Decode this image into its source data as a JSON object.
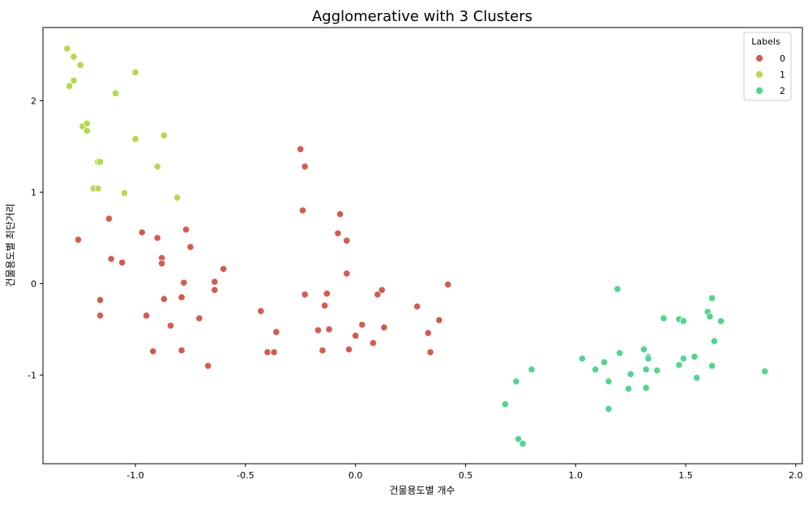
{
  "chart_data": {
    "type": "scatter",
    "title": "Agglomerative with 3 Clusters",
    "xlabel": "건물용도별 개수",
    "ylabel": "건물용도별 최단거리",
    "xlim": [
      -1.42,
      2.03
    ],
    "ylim": [
      -1.97,
      2.8
    ],
    "xticks": [
      -1.0,
      -0.5,
      0.0,
      0.5,
      1.0,
      1.5,
      2.0
    ],
    "xtick_labels": [
      "-1.0",
      "-0.5",
      "0.0",
      "0.5",
      "1.0",
      "1.5",
      "2.0"
    ],
    "yticks": [
      -1,
      0,
      1,
      2
    ],
    "ytick_labels": [
      "-1",
      "0",
      "1",
      "2"
    ],
    "grid": false,
    "legend": {
      "title": "Labels",
      "placement": "top-right",
      "entries": [
        "0",
        "1",
        "2"
      ]
    },
    "series": [
      {
        "name": "0",
        "color": "#d65a4e",
        "points": [
          [
            -1.26,
            0.48
          ],
          [
            -1.12,
            0.71
          ],
          [
            -1.11,
            0.27
          ],
          [
            -1.06,
            0.23
          ],
          [
            -1.16,
            -0.18
          ],
          [
            -1.16,
            -0.35
          ],
          [
            -0.97,
            0.56
          ],
          [
            -0.9,
            0.5
          ],
          [
            -0.88,
            0.28
          ],
          [
            -0.88,
            0.22
          ],
          [
            -0.77,
            0.59
          ],
          [
            -0.75,
            0.4
          ],
          [
            -0.78,
            0.01
          ],
          [
            -0.87,
            -0.17
          ],
          [
            -0.79,
            -0.15
          ],
          [
            -0.95,
            -0.35
          ],
          [
            -0.84,
            -0.46
          ],
          [
            -0.92,
            -0.74
          ],
          [
            -0.79,
            -0.73
          ],
          [
            -0.71,
            -0.38
          ],
          [
            -0.64,
            0.02
          ],
          [
            -0.64,
            -0.07
          ],
          [
            -0.6,
            0.16
          ],
          [
            -0.67,
            -0.9
          ],
          [
            -0.43,
            -0.3
          ],
          [
            -0.4,
            -0.75
          ],
          [
            -0.37,
            -0.75
          ],
          [
            -0.36,
            -0.53
          ],
          [
            -0.25,
            1.47
          ],
          [
            -0.23,
            1.28
          ],
          [
            -0.24,
            0.8
          ],
          [
            -0.23,
            -0.12
          ],
          [
            -0.17,
            -0.51
          ],
          [
            -0.15,
            -0.73
          ],
          [
            -0.14,
            -0.24
          ],
          [
            -0.12,
            -0.5
          ],
          [
            -0.13,
            -0.11
          ],
          [
            -0.07,
            0.76
          ],
          [
            -0.08,
            0.55
          ],
          [
            -0.04,
            0.47
          ],
          [
            -0.04,
            0.11
          ],
          [
            -0.03,
            -0.72
          ],
          [
            0.0,
            -0.57
          ],
          [
            0.03,
            -0.45
          ],
          [
            0.08,
            -0.65
          ],
          [
            0.1,
            -0.12
          ],
          [
            0.12,
            -0.07
          ],
          [
            0.13,
            -0.48
          ],
          [
            0.28,
            -0.25
          ],
          [
            0.33,
            -0.54
          ],
          [
            0.34,
            -0.75
          ],
          [
            0.38,
            -0.4
          ],
          [
            0.42,
            -0.01
          ]
        ]
      },
      {
        "name": "1",
        "color": "#b5d94a",
        "points": [
          [
            -1.31,
            2.57
          ],
          [
            -1.28,
            2.48
          ],
          [
            -1.25,
            2.39
          ],
          [
            -1.3,
            2.16
          ],
          [
            -1.28,
            2.22
          ],
          [
            -1.0,
            2.31
          ],
          [
            -1.09,
            2.08
          ],
          [
            -1.24,
            1.72
          ],
          [
            -1.22,
            1.75
          ],
          [
            -1.22,
            1.67
          ],
          [
            -0.87,
            1.62
          ],
          [
            -1.0,
            1.58
          ],
          [
            -1.17,
            1.33
          ],
          [
            -1.16,
            1.33
          ],
          [
            -0.9,
            1.28
          ],
          [
            -1.19,
            1.04
          ],
          [
            -1.17,
            1.04
          ],
          [
            -1.05,
            0.99
          ],
          [
            -0.81,
            0.94
          ]
        ]
      },
      {
        "name": "2",
        "color": "#4fd68f",
        "points": [
          [
            1.19,
            -0.06
          ],
          [
            1.4,
            -0.38
          ],
          [
            1.47,
            -0.39
          ],
          [
            1.49,
            -0.41
          ],
          [
            1.6,
            -0.31
          ],
          [
            1.61,
            -0.36
          ],
          [
            1.62,
            -0.16
          ],
          [
            1.66,
            -0.41
          ],
          [
            1.63,
            -0.63
          ],
          [
            1.31,
            -0.72
          ],
          [
            1.33,
            -0.8
          ],
          [
            1.33,
            -0.82
          ],
          [
            1.2,
            -0.76
          ],
          [
            1.13,
            -0.86
          ],
          [
            1.03,
            -0.82
          ],
          [
            1.09,
            -0.94
          ],
          [
            1.25,
            -0.99
          ],
          [
            1.32,
            -0.94
          ],
          [
            1.37,
            -0.95
          ],
          [
            1.47,
            -0.89
          ],
          [
            1.49,
            -0.82
          ],
          [
            1.54,
            -0.8
          ],
          [
            1.62,
            -0.9
          ],
          [
            1.55,
            -1.03
          ],
          [
            1.15,
            -1.07
          ],
          [
            1.24,
            -1.15
          ],
          [
            1.32,
            -1.14
          ],
          [
            1.86,
            -0.96
          ],
          [
            1.15,
            -1.37
          ],
          [
            0.8,
            -0.94
          ],
          [
            0.73,
            -1.07
          ],
          [
            0.68,
            -1.32
          ],
          [
            0.74,
            -1.7
          ],
          [
            0.76,
            -1.75
          ]
        ]
      }
    ]
  }
}
